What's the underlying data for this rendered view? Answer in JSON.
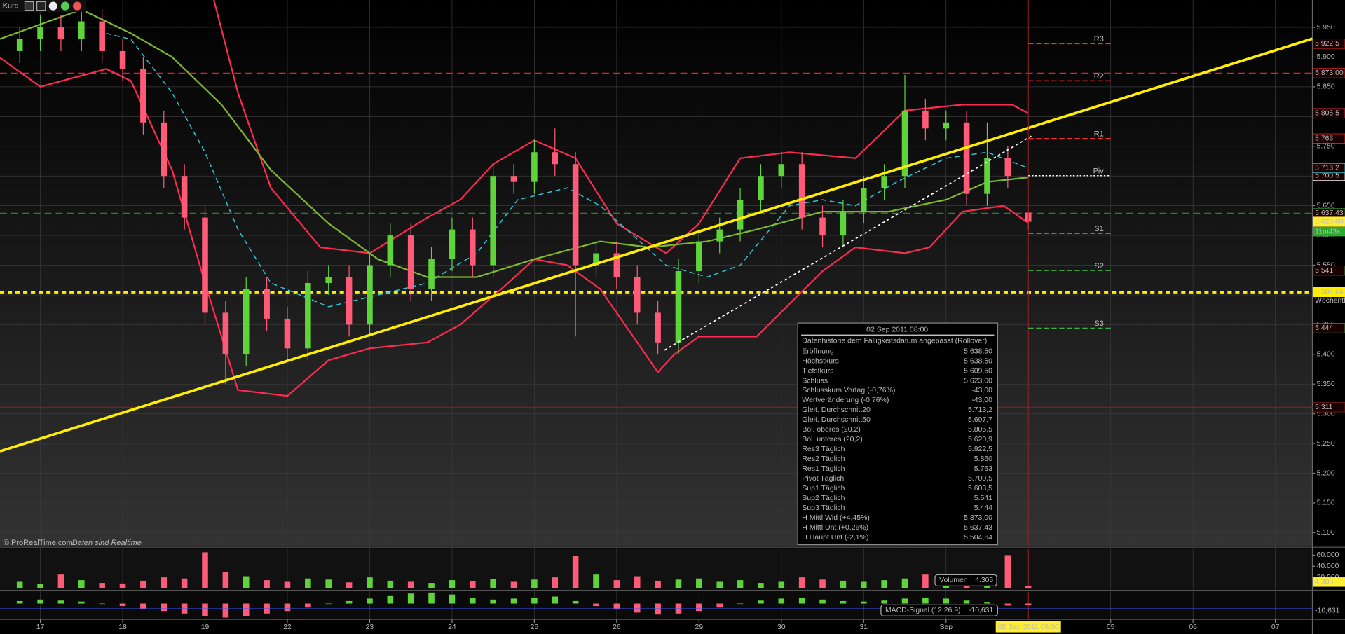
{
  "toolbar": {
    "title": "Kurs"
  },
  "watermark": [
    "© ProRealTime.com",
    "Daten sind Realtime"
  ],
  "info_panel": {
    "title": "02 Sep 2011 08:00",
    "subtitle": "Datenhistorie dem Fälligkeitsdatum angepasst (Rollover)",
    "rows": [
      {
        "label": "Eröffnung",
        "value": "5.638,50",
        "color": "#3f7a2c"
      },
      {
        "label": "Höchstkurs",
        "value": "5.638,50",
        "color": "#3f7a2c"
      },
      {
        "label": "Tiefstkurs",
        "value": "5.609,50",
        "color": "#3f7a2c"
      },
      {
        "label": "Schluss",
        "value": "5.623,00",
        "color": "#3f7a2c"
      },
      {
        "label": "Schlusskurs Vortag (-0,76%)",
        "value": "-43,00",
        "color": "#e0202e"
      },
      {
        "label": "Wertveränderung (-0,76%)",
        "value": "-43,00",
        "color": "#e0202e"
      },
      {
        "label": "Gleit. Durchschnitt20",
        "value": "5.713,2",
        "color": "#33e0e6"
      },
      {
        "label": "Gleit. Durchschnitt50",
        "value": "5.697,7",
        "color": "#c6ee5a"
      },
      {
        "label": "Bol. oberes (20,2)",
        "value": "5.805,5",
        "color": "#ff3050"
      },
      {
        "label": "Bol. unteres (20,2)",
        "value": "5.620,9",
        "color": "#ff3050"
      },
      {
        "label": "Res3 Täglich",
        "value": "5.922,5",
        "color": "#ff2a2a"
      },
      {
        "label": "Res2 Täglich",
        "value": "5.860",
        "color": "#ff2a2a"
      },
      {
        "label": "Res1 Täglich",
        "value": "5.763",
        "color": "#ff2a2a"
      },
      {
        "label": "Pivot Täglich",
        "value": "5.700,5",
        "color": "#ffffff"
      },
      {
        "label": "Sup1 Täglich",
        "value": "5.603,5",
        "color": "#3cb043"
      },
      {
        "label": "Sup2 Täglich",
        "value": "5.541",
        "color": "#3cb043"
      },
      {
        "label": "Sup3 Täglich",
        "value": "5.444",
        "color": "#3cb043"
      },
      {
        "label": "H Mittl Wid (+4,45%)",
        "value": "5.873,00",
        "color": "#ff2a2a"
      },
      {
        "label": "H Mittl Unt (+0,26%)",
        "value": "5.637,43",
        "color": "#7cfc5c"
      },
      {
        "label": "H Haupt Unt (-2,1%)",
        "value": "5.504,64",
        "color": "#ffee33"
      }
    ]
  },
  "chart_data": [
    {
      "type": "candlestick",
      "x": [
        -0.25,
        0,
        0.25,
        0.5,
        0.75,
        1,
        1.25,
        1.5,
        1.75,
        2,
        2.25,
        2.5,
        2.75,
        3,
        3.25,
        3.5,
        3.75,
        4,
        4.25,
        4.5,
        4.75,
        5,
        5.25,
        5.5,
        5.75,
        6,
        6.25,
        6.5,
        6.75,
        7,
        7.25,
        7.5,
        7.75,
        8,
        8.25,
        8.5,
        8.75,
        9,
        9.25,
        9.5,
        9.75,
        10,
        10.25,
        10.5,
        10.75,
        11,
        11.25,
        11.5,
        11.75,
        12
      ],
      "open": [
        5.91,
        5.93,
        5.95,
        5.93,
        5.96,
        5.91,
        5.88,
        5.79,
        5.7,
        5.63,
        5.47,
        5.4,
        5.51,
        5.46,
        5.41,
        5.52,
        5.53,
        5.45,
        5.55,
        5.6,
        5.51,
        5.56,
        5.61,
        5.55,
        5.7,
        5.69,
        5.74,
        5.72,
        5.55,
        5.57,
        5.53,
        5.47,
        5.42,
        5.54,
        5.59,
        5.61,
        5.66,
        5.7,
        5.72,
        5.63,
        5.6,
        5.64,
        5.68,
        5.7,
        5.81,
        5.78,
        5.79,
        5.67,
        5.73,
        5.6385
      ],
      "high": [
        5.95,
        5.97,
        5.97,
        5.98,
        5.98,
        5.93,
        5.9,
        5.81,
        5.72,
        5.65,
        5.49,
        5.53,
        5.53,
        5.48,
        5.54,
        5.55,
        5.55,
        5.57,
        5.62,
        5.62,
        5.58,
        5.63,
        5.63,
        5.72,
        5.72,
        5.76,
        5.78,
        5.74,
        5.59,
        5.59,
        5.55,
        5.49,
        5.56,
        5.61,
        5.63,
        5.68,
        5.72,
        5.74,
        5.74,
        5.65,
        5.66,
        5.7,
        5.72,
        5.87,
        5.83,
        5.81,
        5.81,
        5.79,
        5.75,
        5.6385
      ],
      "low": [
        5.89,
        5.91,
        5.91,
        5.91,
        5.89,
        5.86,
        5.77,
        5.68,
        5.61,
        5.45,
        5.35,
        5.38,
        5.44,
        5.39,
        5.39,
        5.5,
        5.43,
        5.43,
        5.53,
        5.49,
        5.49,
        5.54,
        5.53,
        5.53,
        5.67,
        5.67,
        5.7,
        5.43,
        5.53,
        5.51,
        5.45,
        5.4,
        5.4,
        5.52,
        5.57,
        5.59,
        5.64,
        5.68,
        5.61,
        5.58,
        5.58,
        5.62,
        5.66,
        5.68,
        5.76,
        5.76,
        5.65,
        5.65,
        5.68,
        5.6095
      ],
      "close": [
        5.93,
        5.95,
        5.93,
        5.96,
        5.91,
        5.88,
        5.79,
        5.7,
        5.63,
        5.47,
        5.4,
        5.51,
        5.46,
        5.41,
        5.52,
        5.53,
        5.45,
        5.55,
        5.6,
        5.51,
        5.56,
        5.61,
        5.55,
        5.7,
        5.69,
        5.74,
        5.72,
        5.55,
        5.57,
        5.53,
        5.47,
        5.42,
        5.54,
        5.59,
        5.61,
        5.66,
        5.7,
        5.72,
        5.63,
        5.6,
        5.64,
        5.68,
        5.7,
        5.81,
        5.78,
        5.79,
        5.67,
        5.73,
        5.7,
        5.623
      ],
      "up_color": "#5fd33a",
      "down_color": "#ff5a78",
      "xlim": [
        -0.49,
        15.45
      ],
      "xticks": [
        {
          "value": 0,
          "label": "17"
        },
        {
          "value": 1,
          "label": "18"
        },
        {
          "value": 2,
          "label": "19"
        },
        {
          "value": 3,
          "label": "22"
        },
        {
          "value": 4,
          "label": "23"
        },
        {
          "value": 5,
          "label": "24"
        },
        {
          "value": 6,
          "label": "25"
        },
        {
          "value": 7,
          "label": "26"
        },
        {
          "value": 8,
          "label": "29"
        },
        {
          "value": 9,
          "label": "30"
        },
        {
          "value": 10,
          "label": "31"
        },
        {
          "value": 11,
          "label": "Sep"
        },
        {
          "value": 13,
          "label": "05"
        },
        {
          "value": 14,
          "label": "06"
        },
        {
          "value": 15,
          "label": "07"
        }
      ],
      "ylim": [
        5.077,
        5.996
      ],
      "yticks": [
        {
          "value": 5.1,
          "label": "5.100"
        },
        {
          "value": 5.15,
          "label": "5.150"
        },
        {
          "value": 5.2,
          "label": "5.200"
        },
        {
          "value": 5.25,
          "label": "5.250"
        },
        {
          "value": 5.3,
          "label": "5.300"
        },
        {
          "value": 5.35,
          "label": "5.350"
        },
        {
          "value": 5.4,
          "label": "5.400"
        },
        {
          "value": 5.45,
          "label": "5.450"
        },
        {
          "value": 5.5,
          "label": "5.500"
        },
        {
          "value": 5.55,
          "label": "5.550"
        },
        {
          "value": 5.6,
          "label": "5.600"
        },
        {
          "value": 5.65,
          "label": "5.650"
        },
        {
          "value": 5.7,
          "label": "5.700"
        },
        {
          "value": 5.75,
          "label": "5.750"
        },
        {
          "value": 5.8,
          "label": "5.800"
        },
        {
          "value": 5.85,
          "label": "5.850"
        },
        {
          "value": 5.9,
          "label": "5.900"
        },
        {
          "value": 5.95,
          "label": "5.950"
        }
      ],
      "grid": true,
      "indicators": [
        {
          "color": "#ff2a50",
          "dash": false,
          "x": [
            -0.25,
            1.5,
            2.1,
            2.4,
            2.8,
            3.4,
            4.0,
            4.7,
            5.1,
            5.5,
            6.0,
            6.5,
            7.0,
            7.6,
            8.0,
            8.5,
            9.1,
            9.9,
            10.5,
            11.2,
            11.8,
            12.0
          ],
          "values": [
            6.08,
            6.06,
            6.0,
            5.84,
            5.68,
            5.58,
            5.57,
            5.63,
            5.66,
            5.72,
            5.76,
            5.73,
            5.62,
            5.57,
            5.62,
            5.73,
            5.74,
            5.73,
            5.81,
            5.82,
            5.82,
            5.8055
          ]
        },
        {
          "color": "#ff2a50",
          "dash": false,
          "x": [
            -0.5,
            0,
            0.8,
            1.1,
            1.6,
            2.0,
            2.4,
            3.0,
            3.5,
            4.0,
            4.7,
            5.1,
            5.6,
            6.0,
            6.4,
            6.8,
            7.2,
            7.5,
            7.7,
            8.0,
            8.7,
            9.5,
            9.9,
            10.5,
            10.8,
            11.2,
            11.7,
            12.0
          ],
          "values": [
            5.9,
            5.85,
            5.88,
            5.86,
            5.71,
            5.52,
            5.34,
            5.33,
            5.39,
            5.41,
            5.42,
            5.45,
            5.51,
            5.56,
            5.55,
            5.51,
            5.43,
            5.37,
            5.4,
            5.43,
            5.43,
            5.54,
            5.58,
            5.57,
            5.58,
            5.64,
            5.65,
            5.6209
          ]
        },
        {
          "color": "#2ec8d8",
          "dash": true,
          "x": [
            0.8,
            1.1,
            1.6,
            2.0,
            2.4,
            2.8,
            3.5,
            4.1,
            4.7,
            5.3,
            5.8,
            6.4,
            6.8,
            7.2,
            7.6,
            8.1,
            8.5,
            9.1,
            9.5,
            9.9,
            10.4,
            11.0,
            11.5,
            12.0
          ],
          "values": [
            5.94,
            5.93,
            5.84,
            5.74,
            5.61,
            5.52,
            5.48,
            5.5,
            5.52,
            5.57,
            5.66,
            5.68,
            5.65,
            5.6,
            5.55,
            5.53,
            5.55,
            5.65,
            5.66,
            5.65,
            5.69,
            5.73,
            5.74,
            5.7132
          ]
        },
        {
          "color": "#7fb830",
          "dash": false,
          "x": [
            -0.5,
            0.5,
            1.1,
            1.6,
            2.2,
            2.8,
            3.5,
            4.1,
            4.7,
            5.3,
            6.0,
            6.8,
            7.4,
            8.1,
            8.7,
            9.5,
            10.3,
            11.0,
            11.5,
            12.0
          ],
          "values": [
            5.93,
            5.98,
            5.94,
            5.9,
            5.82,
            5.71,
            5.62,
            5.56,
            5.53,
            5.53,
            5.56,
            5.59,
            5.58,
            5.59,
            5.61,
            5.64,
            5.64,
            5.66,
            5.69,
            5.6977
          ]
        }
      ],
      "trendlines": [
        {
          "color": "#ffee00",
          "dash": false,
          "x": [
            -0.49,
            15.45
          ],
          "values": [
            5.237,
            5.931
          ]
        },
        {
          "color": "#ffffff",
          "dash": true,
          "x": [
            7.58,
            12.06
          ],
          "values": [
            5.407,
            5.769
          ]
        }
      ],
      "levels": [
        {
          "value": 5.873,
          "label": "5.873,00",
          "color": "#e0202e",
          "style": "dashed"
        },
        {
          "value": 5.63743,
          "label": "5.637,43",
          "color": "#2f8a2f",
          "style": "dashed"
        },
        {
          "value": 5.50464,
          "label": "5.504,64",
          "note": "Wöchentl",
          "color": "#ffee00",
          "style": "dotted"
        },
        {
          "value": 5.311,
          "label": "5.311",
          "color": "#8a1a1a",
          "style": "solid"
        }
      ],
      "pivots": [
        {
          "name": "R3",
          "value": 5.9225,
          "label": "5.922,5",
          "color": "#ff2a2a"
        },
        {
          "name": "R2",
          "value": 5.86,
          "color": "#ff2a2a"
        },
        {
          "name": "R1",
          "value": 5.763,
          "label": "5.763",
          "color": "#ff2a2a"
        },
        {
          "name": "Piv",
          "value": 5.7005,
          "label": "5.700,5",
          "color": "#ffffff"
        },
        {
          "name": "S1",
          "value": 5.6035,
          "color": "#3cb043"
        },
        {
          "name": "S2",
          "value": 5.541,
          "label": "5.541",
          "color": "#3cb043"
        },
        {
          "name": "S3",
          "value": 5.444,
          "label": "5.444",
          "color": "#3cb043"
        }
      ],
      "markers": [
        {
          "value": 5.8055,
          "label": "5.805,5",
          "color": "#ff3050"
        },
        {
          "value": 5.7132,
          "label": "5.713,2",
          "color": "#33e0e6"
        },
        {
          "value": 5.623,
          "label": "5.623,00",
          "color": "#ffee33",
          "filled": true
        }
      ],
      "countdown": "11m43s"
    },
    {
      "type": "bar",
      "x": [
        -0.25,
        0,
        0.25,
        0.5,
        0.75,
        1,
        1.25,
        1.5,
        1.75,
        2,
        2.25,
        2.5,
        2.75,
        3,
        3.25,
        3.5,
        3.75,
        4,
        4.25,
        4.5,
        4.75,
        5,
        5.25,
        5.5,
        5.75,
        6,
        6.25,
        6.5,
        6.75,
        7,
        7.25,
        7.5,
        7.75,
        8,
        8.25,
        8.5,
        8.75,
        9,
        9.25,
        9.5,
        9.75,
        10,
        10.25,
        10.5,
        10.75,
        11,
        11.25,
        11.5,
        11.75,
        12
      ],
      "values": [
        12000,
        8000,
        25000,
        15000,
        10000,
        9000,
        14000,
        20000,
        18000,
        65000,
        30000,
        22000,
        15000,
        12000,
        18000,
        16000,
        11000,
        20000,
        14000,
        12000,
        10000,
        15000,
        13000,
        17000,
        12000,
        16000,
        20000,
        58000,
        25000,
        15000,
        22000,
        14000,
        16000,
        18000,
        12000,
        15000,
        10000,
        12000,
        20000,
        16000,
        14000,
        12000,
        15000,
        18000,
        25000,
        12000,
        16000,
        10000,
        60000,
        4305
      ],
      "value_labels": {
        "49": "4.305"
      },
      "legend": "Volumen",
      "ylim": [
        0,
        68000
      ],
      "yticks": [
        {
          "value": 20000,
          "label": "20.000"
        },
        {
          "value": 40000,
          "label": "40.000"
        },
        {
          "value": 60000,
          "label": "60.000"
        }
      ]
    },
    {
      "type": "bar",
      "x": [
        -0.25,
        0,
        0.25,
        0.5,
        0.75,
        1,
        1.25,
        1.5,
        1.75,
        2,
        2.25,
        2.5,
        2.75,
        3,
        3.25,
        3.5,
        3.75,
        4,
        4.25,
        4.5,
        4.75,
        5,
        5.25,
        5.5,
        5.75,
        6,
        6.25,
        6.5,
        6.75,
        7,
        7.25,
        7.5,
        7.75,
        8,
        8.25,
        8.5,
        8.75,
        9,
        9.25,
        9.5,
        9.75,
        10,
        10.25,
        10.5,
        10.75,
        11,
        11.25,
        11.5,
        11.75,
        12
      ],
      "values": [
        5,
        8,
        6,
        4,
        0,
        -5,
        -10,
        -15,
        -20,
        -25,
        -28,
        -25,
        -20,
        -15,
        -8,
        0,
        5,
        10,
        15,
        20,
        22,
        18,
        12,
        8,
        10,
        12,
        14,
        5,
        -5,
        -12,
        -18,
        -22,
        -20,
        -15,
        -8,
        0,
        6,
        10,
        12,
        8,
        5,
        4,
        6,
        10,
        12,
        10,
        6,
        2,
        -4,
        -3
      ],
      "up_color": "#5fd33a",
      "down_color": "#ff5a78",
      "ylim": [
        -30,
        25
      ],
      "signal": {
        "name": "MACD-Signal (12,26,9)",
        "value": -10.631,
        "label": "-10,631",
        "color": "#3355ff"
      }
    }
  ]
}
